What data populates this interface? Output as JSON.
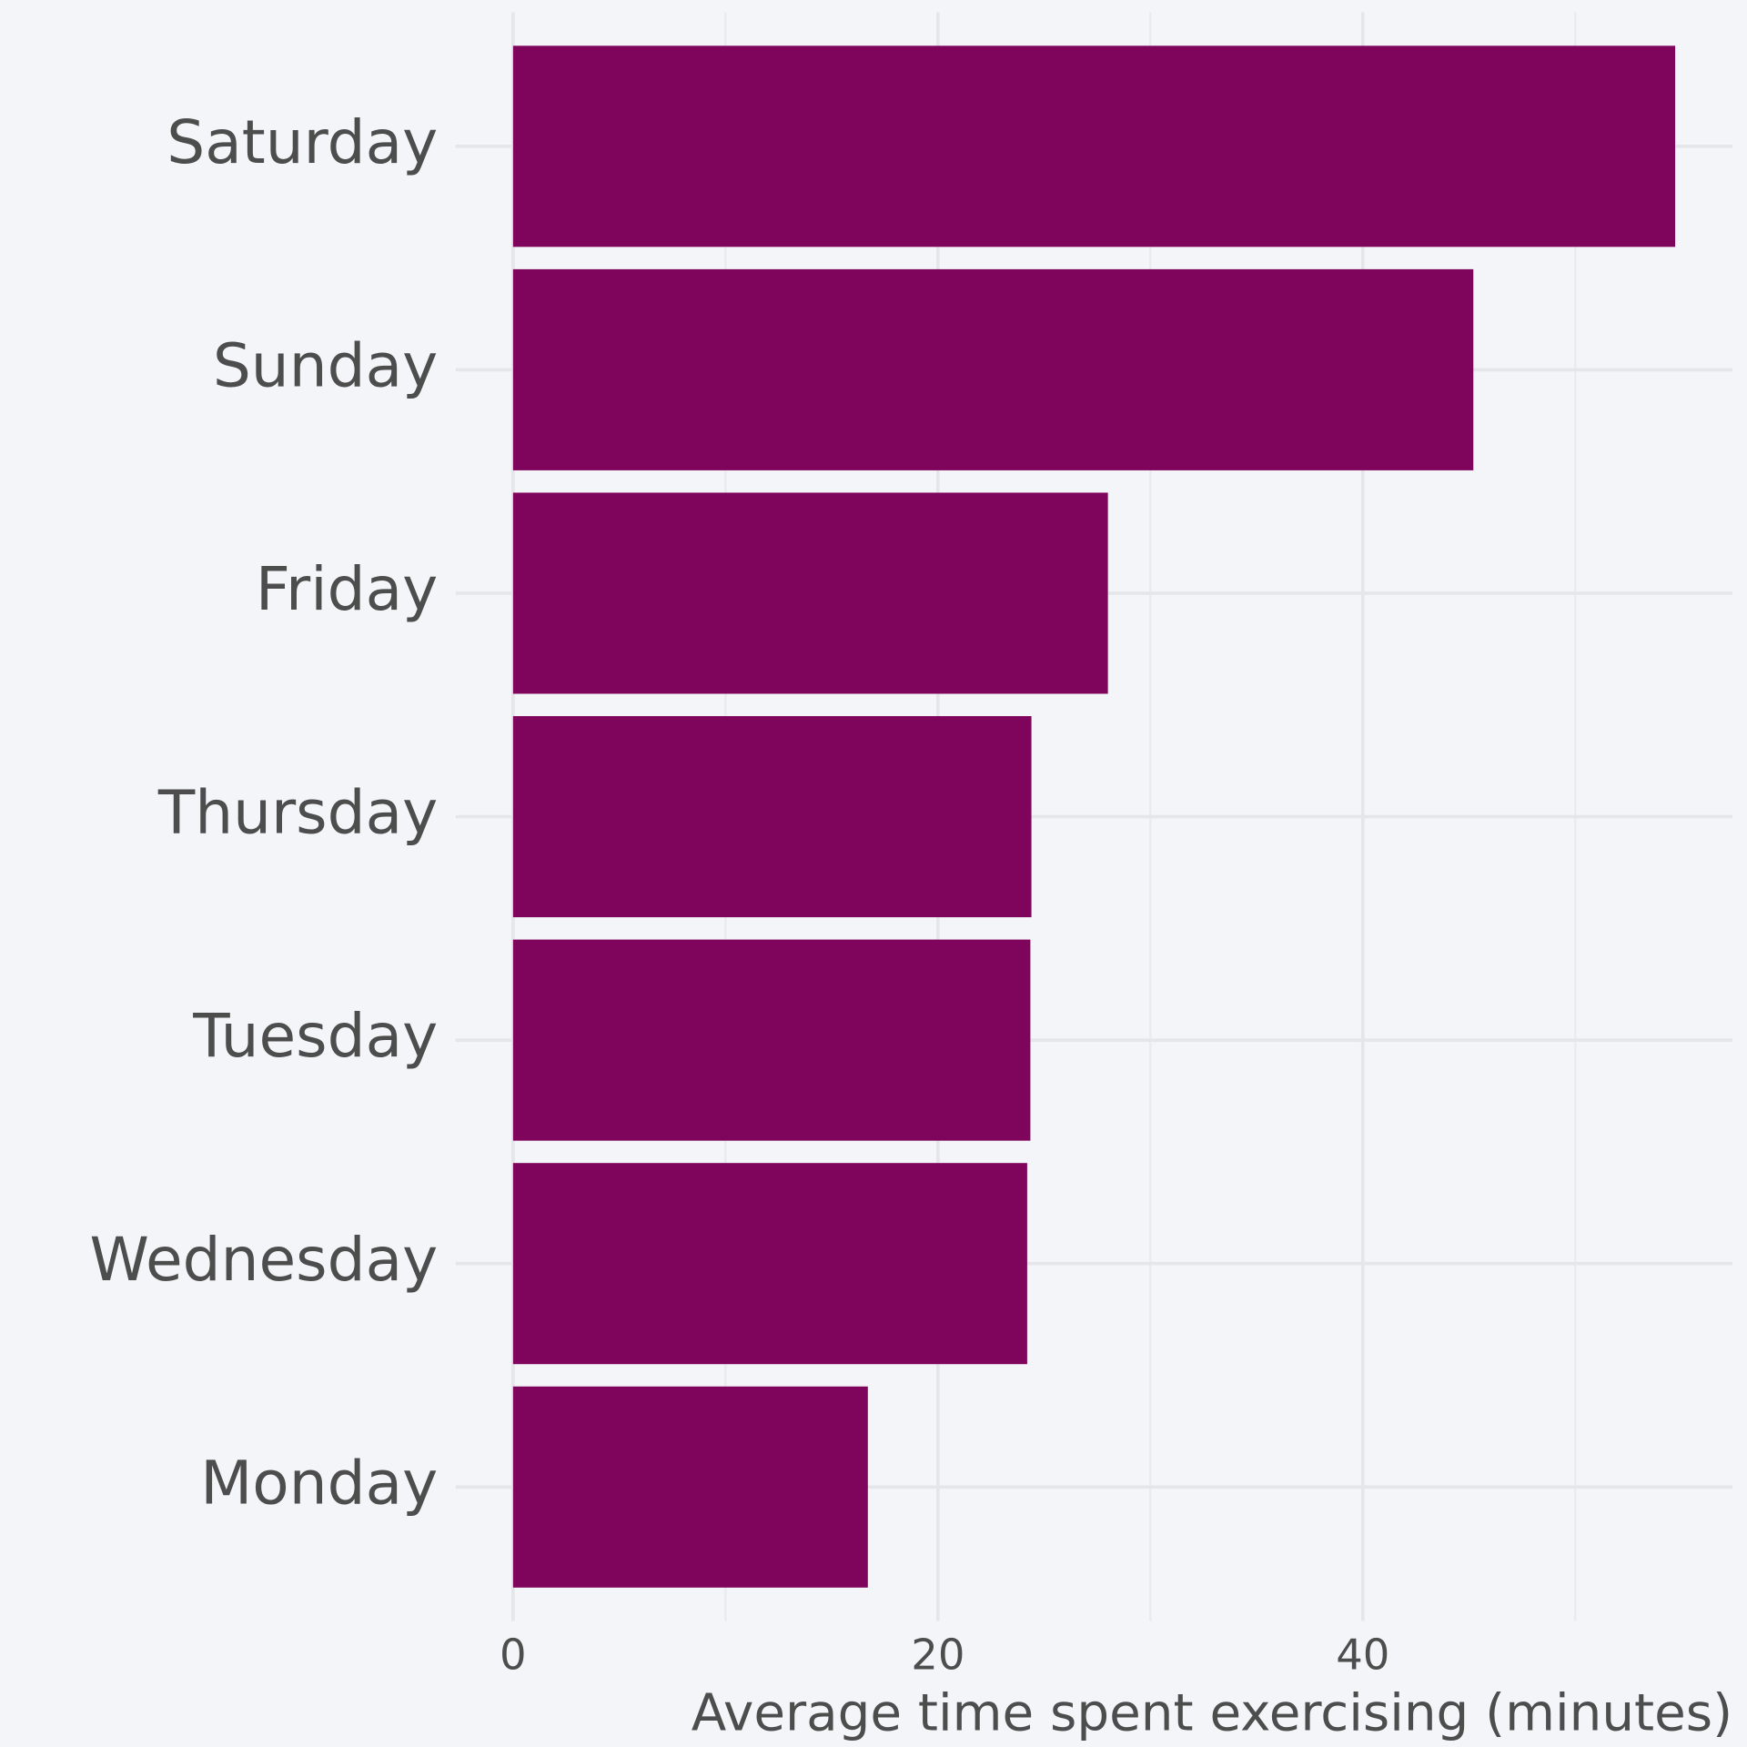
{
  "chart_data": {
    "type": "bar",
    "orientation": "horizontal",
    "categories": [
      "Saturday",
      "Sunday",
      "Friday",
      "Thursday",
      "Tuesday",
      "Wednesday",
      "Monday"
    ],
    "values": [
      54.7,
      45.2,
      28.0,
      24.4,
      24.35,
      24.2,
      16.7
    ],
    "color": "#7f045c",
    "xlabel": "Average time spent exercising (minutes)",
    "xlim": [
      -2.7,
      57.4
    ],
    "xticks": [
      0,
      20,
      40
    ],
    "minor_xticks": [
      10,
      30,
      50
    ],
    "grid": true
  }
}
